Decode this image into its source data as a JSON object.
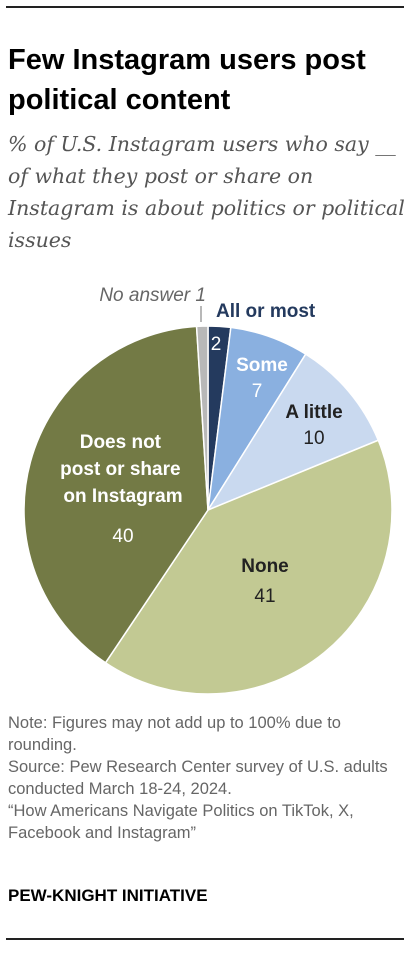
{
  "header": {
    "title": "Few Instagram users post political content",
    "subtitle": "% of U.S. Instagram users who say __ of what they post or share on Instagram is about politics or political issues"
  },
  "chart_data": {
    "type": "pie",
    "slices": [
      {
        "label": "All or most",
        "value": 2,
        "color": "#243a5e"
      },
      {
        "label": "Some",
        "value": 7,
        "color": "#8ab0e0"
      },
      {
        "label": "A little",
        "value": 10,
        "color": "#c9d9ef"
      },
      {
        "label": "None",
        "value": 41,
        "color": "#c2c993"
      },
      {
        "label": "Does not post or share on Instagram",
        "value": 40,
        "color": "#737a45"
      },
      {
        "label": "No answer",
        "value": 1,
        "color": "#b8b8b8"
      }
    ],
    "start_angle_deg": 0,
    "direction": "clockwise"
  },
  "footer": {
    "note": "Note: Figures may not add up to 100% due to rounding.",
    "source": "Source: Pew Research Center survey of U.S. adults conducted March 18-24, 2024.",
    "report": "“How Americans Navigate Politics on TikTok, X, Facebook and Instagram”",
    "brand": "PEW-KNIGHT INITIATIVE"
  }
}
